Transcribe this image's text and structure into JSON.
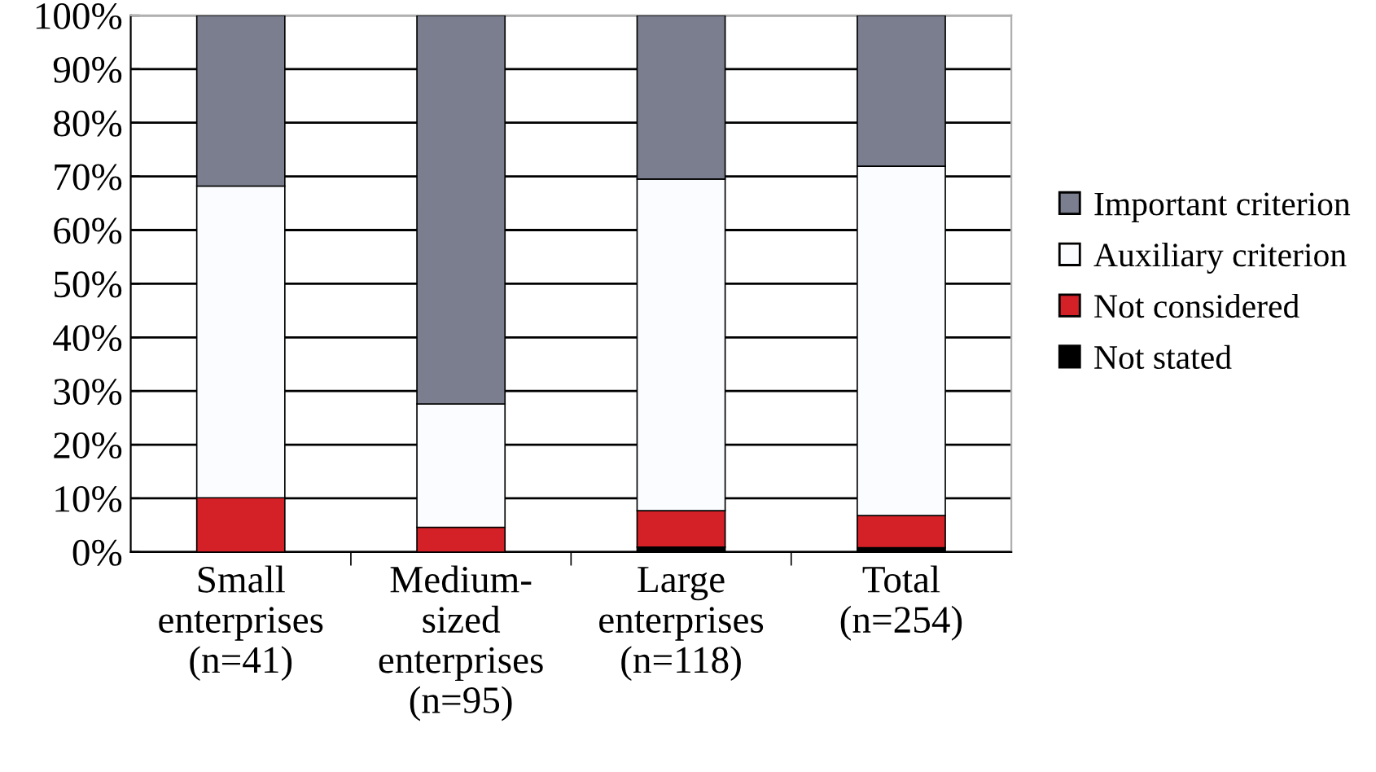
{
  "chart_data": {
    "type": "bar",
    "stacked": true,
    "categories": [
      "Small\nenterprises\n(n=41)",
      "Medium-\nsized\nenterprises\n(n=95)",
      "Large\nenterprises\n(n=118)",
      "Total\n(n=254)"
    ],
    "series": [
      {
        "name": "Not stated",
        "color": "#000000",
        "values": [
          0,
          0,
          0.9,
          0.8
        ]
      },
      {
        "name": "Not considered",
        "color": "#d42027",
        "values": [
          10.1,
          4.6,
          6.8,
          6.0
        ]
      },
      {
        "name": "Auxiliary criterion",
        "color": "#fafcff",
        "values": [
          58.1,
          23.0,
          61.8,
          65.1
        ]
      },
      {
        "name": "Important criterion",
        "color": "#7a7e8e",
        "values": [
          31.8,
          72.4,
          30.5,
          28.1
        ]
      }
    ],
    "ylim": [
      0,
      100
    ],
    "yticks": [
      {
        "value": 0,
        "label": "0%"
      },
      {
        "value": 10,
        "label": "10%"
      },
      {
        "value": 20,
        "label": "20%"
      },
      {
        "value": 30,
        "label": "30%"
      },
      {
        "value": 40,
        "label": "40%"
      },
      {
        "value": 50,
        "label": "50%"
      },
      {
        "value": 60,
        "label": "60%"
      },
      {
        "value": 70,
        "label": "70%"
      },
      {
        "value": 80,
        "label": "80%"
      },
      {
        "value": 90,
        "label": "90%"
      },
      {
        "value": 100,
        "label": "100%"
      }
    ],
    "grid": "y",
    "legend": "right"
  }
}
